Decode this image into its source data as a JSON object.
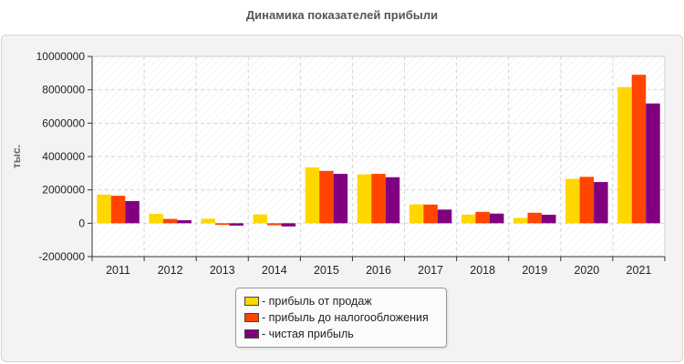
{
  "chart_data": {
    "type": "bar",
    "title": "Динамика показателей прибыли",
    "ylabel": "тыс.",
    "xlabel": "",
    "categories": [
      "2011",
      "2012",
      "2013",
      "2014",
      "2015",
      "2016",
      "2017",
      "2018",
      "2019",
      "2020",
      "2021"
    ],
    "ylim": [
      -2000000,
      10000000
    ],
    "yticks": [
      -2000000,
      0,
      2000000,
      4000000,
      6000000,
      8000000,
      10000000
    ],
    "ytick_labels": [
      "-2000000",
      "0",
      "2000000",
      "4000000",
      "6000000",
      "8000000",
      "10000000"
    ],
    "grid": true,
    "legend_position": "bottom-center",
    "series": [
      {
        "name": "- прибыль от продаж",
        "color": "#ffd700",
        "values": [
          1720000,
          560000,
          270000,
          530000,
          3350000,
          2930000,
          1130000,
          520000,
          320000,
          2660000,
          8160000
        ]
      },
      {
        "name": "- прибыль до налогообложения",
        "color": "#ff4500",
        "values": [
          1650000,
          260000,
          -100000,
          -120000,
          3140000,
          2960000,
          1120000,
          680000,
          630000,
          2780000,
          8900000
        ]
      },
      {
        "name": "- чистая прибыль",
        "color": "#800080",
        "values": [
          1330000,
          180000,
          -140000,
          -190000,
          2960000,
          2760000,
          820000,
          580000,
          510000,
          2470000,
          7180000
        ]
      }
    ]
  }
}
